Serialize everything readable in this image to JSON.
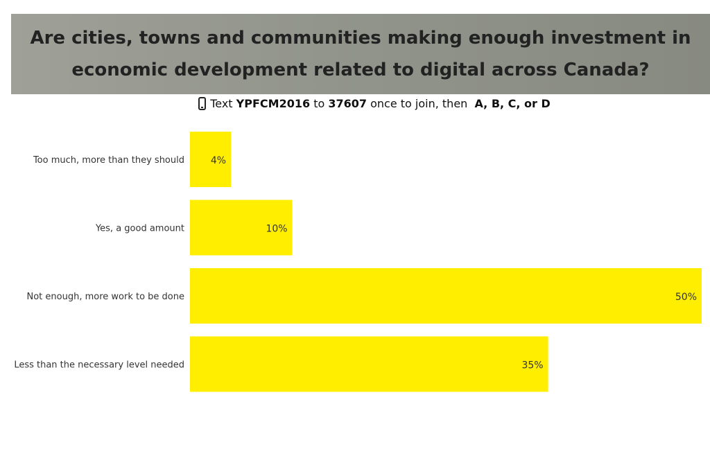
{
  "title": "Are cities, towns and communities making enough investment in economic development related to digital across Canada?",
  "instructions": {
    "icon": "phone-icon",
    "text_prefix": "Text",
    "keyword": "YPFCM2016",
    "to_word": "to",
    "number": "37607",
    "middle": "once to join, then",
    "options": "A, B, C, or D"
  },
  "colors": {
    "bar": "#ffee00",
    "banner": "#92958c"
  },
  "chart_data": {
    "type": "bar",
    "orientation": "horizontal",
    "title": "Are cities, towns and communities making enough investment in economic development related to digital across Canada?",
    "categories": [
      "Too much, more than they should",
      "Yes, a good amount",
      "Not enough, more work to be done",
      "Less than the necessary level needed"
    ],
    "values": [
      4,
      10,
      50,
      35
    ],
    "value_labels": [
      "4%",
      "10%",
      "50%",
      "35%"
    ],
    "unit": "%",
    "xlim": [
      0,
      50
    ],
    "grid": false,
    "legend": "none"
  }
}
